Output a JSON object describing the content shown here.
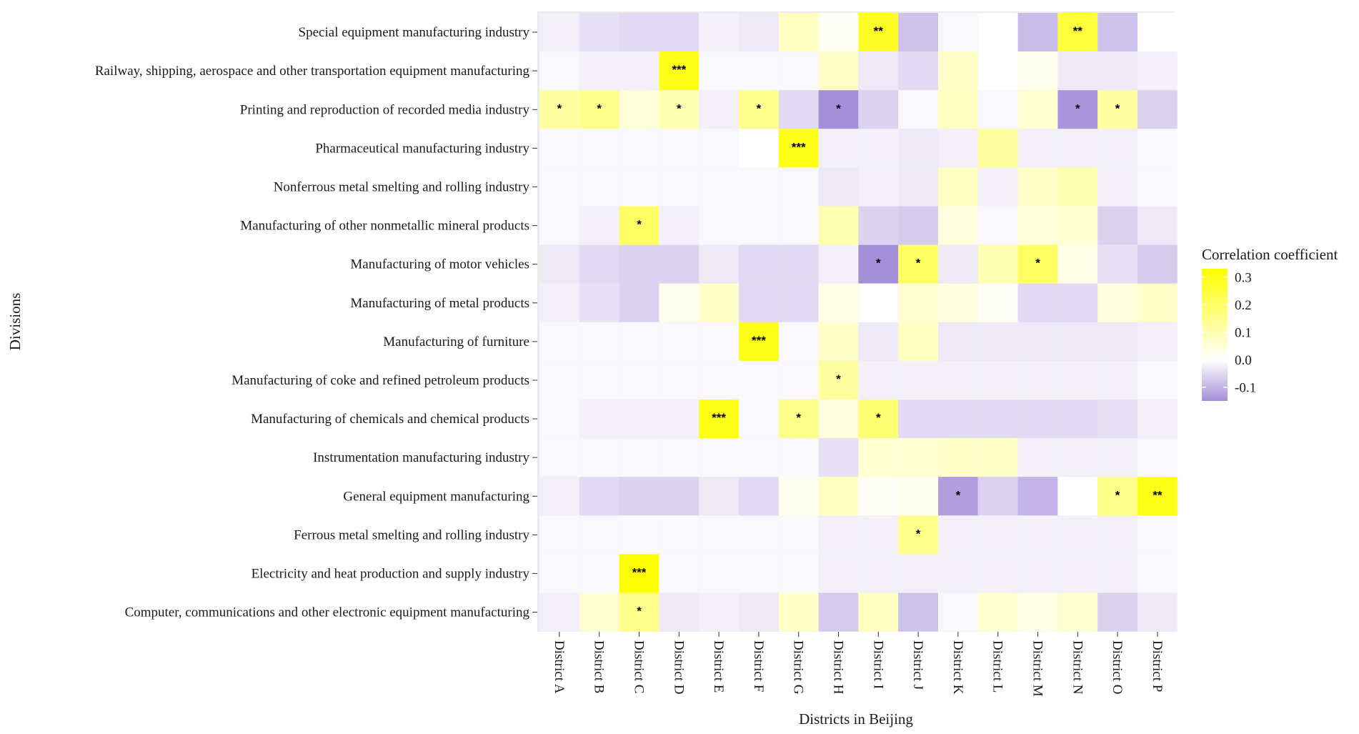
{
  "chart_data": {
    "type": "heatmap",
    "title": "",
    "xlabel": "Districts in Beijing",
    "ylabel": "Divisions",
    "x_categories": [
      "District A",
      "District B",
      "District C",
      "District D",
      "District E",
      "District F",
      "District G",
      "District H",
      "District I",
      "District J",
      "District K",
      "District L",
      "District M",
      "District N",
      "District O",
      "District P"
    ],
    "y_categories": [
      "Special equipment manufacturing industry",
      "Railway, shipping, aerospace and other transportation equipment manufacturing",
      "Printing and reproduction of recorded media industry",
      "Pharmaceutical manufacturing industry",
      "Nonferrous metal smelting and rolling industry",
      "Manufacturing of other nonmetallic mineral products",
      "Manufacturing of motor vehicles",
      "Manufacturing of metal products",
      "Manufacturing of furniture",
      "Manufacturing of coke and refined petroleum products",
      "Manufacturing of chemicals and chemical products",
      "Instrumentation manufacturing industry",
      "General equipment manufacturing",
      "Ferrous metal smelting and rolling industry",
      "Electricity and heat production and supply industry",
      "Computer, communications and other electronic equipment manufacturing"
    ],
    "values": [
      [
        -0.02,
        -0.04,
        -0.05,
        -0.05,
        -0.02,
        -0.03,
        0.08,
        0.01,
        0.28,
        -0.08,
        -0.01,
        0.0,
        -0.09,
        0.25,
        -0.08,
        0.0
      ],
      [
        -0.01,
        -0.02,
        -0.02,
        0.3,
        -0.01,
        -0.01,
        -0.01,
        0.07,
        -0.03,
        -0.05,
        0.07,
        0.0,
        0.02,
        -0.03,
        -0.03,
        -0.02
      ],
      [
        0.12,
        0.15,
        0.05,
        0.1,
        -0.02,
        0.15,
        -0.05,
        -0.15,
        -0.06,
        -0.01,
        0.08,
        -0.01,
        0.06,
        -0.14,
        0.12,
        -0.06
      ],
      [
        -0.01,
        -0.01,
        -0.01,
        -0.01,
        -0.01,
        0.0,
        0.3,
        -0.02,
        -0.02,
        -0.03,
        -0.02,
        0.12,
        -0.02,
        -0.02,
        -0.02,
        -0.01
      ],
      [
        -0.01,
        -0.01,
        -0.01,
        -0.01,
        -0.01,
        -0.01,
        -0.01,
        -0.03,
        -0.02,
        -0.03,
        0.08,
        -0.02,
        0.07,
        0.1,
        -0.02,
        -0.01
      ],
      [
        -0.01,
        -0.02,
        0.2,
        -0.02,
        -0.01,
        -0.01,
        -0.01,
        0.1,
        -0.06,
        -0.07,
        0.04,
        -0.01,
        0.05,
        0.06,
        -0.06,
        -0.03
      ],
      [
        -0.03,
        -0.05,
        -0.06,
        -0.06,
        -0.03,
        -0.05,
        -0.05,
        -0.02,
        -0.15,
        0.2,
        -0.03,
        0.1,
        0.2,
        0.03,
        -0.04,
        -0.07
      ],
      [
        -0.02,
        -0.04,
        -0.06,
        0.02,
        0.07,
        -0.05,
        -0.05,
        0.03,
        0.0,
        0.06,
        0.04,
        0.01,
        -0.05,
        -0.05,
        0.04,
        0.07
      ],
      [
        -0.01,
        -0.01,
        -0.01,
        -0.01,
        -0.01,
        0.3,
        -0.01,
        0.07,
        -0.03,
        0.08,
        -0.03,
        -0.03,
        -0.03,
        -0.03,
        -0.03,
        -0.02
      ],
      [
        -0.01,
        -0.01,
        -0.01,
        -0.01,
        -0.01,
        -0.01,
        -0.01,
        0.12,
        -0.02,
        -0.02,
        -0.02,
        -0.02,
        -0.02,
        -0.02,
        -0.02,
        -0.01
      ],
      [
        -0.01,
        -0.02,
        -0.02,
        -0.02,
        0.3,
        -0.01,
        0.15,
        0.04,
        0.18,
        -0.05,
        -0.05,
        -0.05,
        -0.05,
        -0.05,
        -0.04,
        -0.02
      ],
      [
        -0.01,
        -0.01,
        -0.01,
        -0.01,
        -0.01,
        -0.01,
        -0.01,
        -0.04,
        0.06,
        0.06,
        0.07,
        0.07,
        -0.02,
        -0.02,
        -0.02,
        -0.01
      ],
      [
        -0.02,
        -0.05,
        -0.06,
        -0.06,
        -0.03,
        -0.05,
        0.02,
        0.08,
        0.01,
        0.02,
        -0.13,
        -0.06,
        -0.1,
        0.0,
        0.15,
        0.3
      ],
      [
        -0.01,
        -0.01,
        -0.01,
        -0.01,
        -0.01,
        -0.01,
        -0.01,
        -0.02,
        -0.02,
        0.15,
        -0.02,
        -0.02,
        -0.02,
        -0.02,
        -0.02,
        -0.01
      ],
      [
        -0.01,
        -0.01,
        0.33,
        -0.01,
        -0.01,
        -0.01,
        -0.01,
        -0.02,
        -0.02,
        -0.02,
        -0.02,
        -0.02,
        -0.02,
        -0.02,
        -0.02,
        -0.01
      ],
      [
        -0.02,
        0.06,
        0.15,
        -0.03,
        -0.02,
        -0.03,
        0.07,
        -0.07,
        0.08,
        -0.08,
        -0.01,
        0.06,
        0.03,
        0.06,
        -0.06,
        -0.03
      ]
    ],
    "significance": [
      [
        "",
        "",
        "",
        "",
        "",
        "",
        "",
        "",
        "**",
        "",
        "",
        "",
        "",
        "**",
        "",
        ""
      ],
      [
        "",
        "",
        "",
        "***",
        "",
        "",
        "",
        "",
        "",
        "",
        "",
        "",
        "",
        "",
        "",
        ""
      ],
      [
        "*",
        "*",
        "",
        "*",
        "",
        "*",
        "",
        "*",
        "",
        "",
        "",
        "",
        "",
        "*",
        "*",
        ""
      ],
      [
        "",
        "",
        "",
        "",
        "",
        "",
        "***",
        "",
        "",
        "",
        "",
        "",
        "",
        "",
        "",
        ""
      ],
      [
        "",
        "",
        "",
        "",
        "",
        "",
        "",
        "",
        "",
        "",
        "",
        "",
        "",
        "",
        "",
        ""
      ],
      [
        "",
        "",
        "*",
        "",
        "",
        "",
        "",
        "",
        "",
        "",
        "",
        "",
        "",
        "",
        "",
        ""
      ],
      [
        "",
        "",
        "",
        "",
        "",
        "",
        "",
        "",
        "*",
        "*",
        "",
        "",
        "*",
        "",
        "",
        ""
      ],
      [
        "",
        "",
        "",
        "",
        "",
        "",
        "",
        "",
        "",
        "",
        "",
        "",
        "",
        "",
        "",
        ""
      ],
      [
        "",
        "",
        "",
        "",
        "",
        "***",
        "",
        "",
        "",
        "",
        "",
        "",
        "",
        "",
        "",
        ""
      ],
      [
        "",
        "",
        "",
        "",
        "",
        "",
        "",
        "*",
        "",
        "",
        "",
        "",
        "",
        "",
        "",
        ""
      ],
      [
        "",
        "",
        "",
        "",
        "***",
        "",
        "*",
        "",
        "*",
        "",
        "",
        "",
        "",
        "",
        "",
        ""
      ],
      [
        "",
        "",
        "",
        "",
        "",
        "",
        "",
        "",
        "",
        "",
        "",
        "",
        "",
        "",
        "",
        ""
      ],
      [
        "",
        "",
        "",
        "",
        "",
        "",
        "",
        "",
        "",
        "",
        "*",
        "",
        "",
        "",
        "*",
        "**"
      ],
      [
        "",
        "",
        "",
        "",
        "",
        "",
        "",
        "",
        "",
        "*",
        "",
        "",
        "",
        "",
        "",
        ""
      ],
      [
        "",
        "",
        "***",
        "",
        "",
        "",
        "",
        "",
        "",
        "",
        "",
        "",
        "",
        "",
        "",
        ""
      ],
      [
        "",
        "",
        "*",
        "",
        "",
        "",
        "",
        "",
        "",
        "",
        "",
        "",
        "",
        "",
        "",
        ""
      ]
    ],
    "colorbar": {
      "title": "Correlation coefficient",
      "range": [
        -0.15,
        0.33
      ],
      "ticks": [
        0.3,
        0.2,
        0.1,
        0.0,
        -0.1
      ],
      "tick_labels": [
        "0.3",
        "0.2",
        "0.1",
        "0.0",
        "-0.1"
      ],
      "low_color": "#a48fd9",
      "mid_color": "#ffffff",
      "high_color": "#ffff00"
    }
  }
}
